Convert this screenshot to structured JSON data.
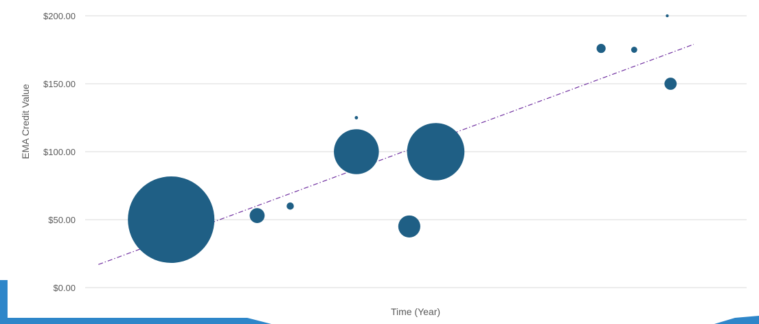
{
  "chart_data": {
    "type": "scatter",
    "subtype": "bubble",
    "title": "",
    "xlabel": "Time (Year)",
    "ylabel": "EMA Credit Value",
    "x_tick_labels": [],
    "ylim": [
      0,
      200
    ],
    "y_ticks": [
      0,
      50,
      100,
      150,
      200
    ],
    "y_tick_labels": [
      "$0.00",
      "$50.00",
      "$100.00",
      "$150.00",
      "$200.00"
    ],
    "grid": "horizontal",
    "legend": "none",
    "bubble_color": "#1f5f85",
    "trendline": {
      "type": "linear",
      "color": "#7030a0",
      "style": "dash-dot",
      "from": {
        "x": 0.2,
        "y": 17
      },
      "to": {
        "x": 9.2,
        "y": 179
      }
    },
    "points": [
      {
        "x": 1.3,
        "y": 50,
        "size": 100
      },
      {
        "x": 2.6,
        "y": 53,
        "size": 3
      },
      {
        "x": 3.1,
        "y": 60,
        "size": 0.7
      },
      {
        "x": 4.1,
        "y": 125,
        "size": 0.15
      },
      {
        "x": 4.1,
        "y": 100,
        "size": 27
      },
      {
        "x": 4.9,
        "y": 45,
        "size": 6.5
      },
      {
        "x": 5.3,
        "y": 100,
        "size": 44
      },
      {
        "x": 7.8,
        "y": 176,
        "size": 1.1
      },
      {
        "x": 8.3,
        "y": 175,
        "size": 0.5
      },
      {
        "x": 8.8,
        "y": 200,
        "size": 0.12
      },
      {
        "x": 8.85,
        "y": 150,
        "size": 2
      }
    ]
  }
}
